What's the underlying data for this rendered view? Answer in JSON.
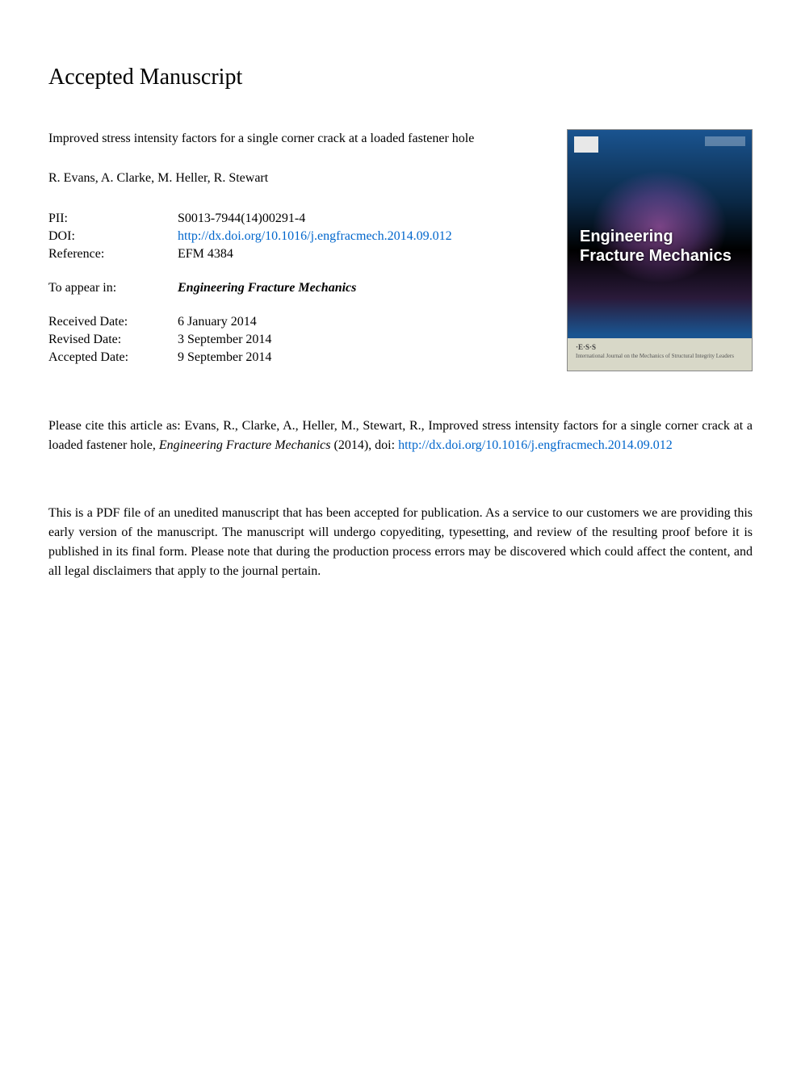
{
  "heading": "Accepted Manuscript",
  "title": "Improved stress intensity factors for a single corner crack at a loaded fastener hole",
  "authors": "R. Evans, A. Clarke, M. Heller, R. Stewart",
  "metadata": {
    "pii_label": "PII:",
    "pii_value": "S0013-7944(14)00291-4",
    "doi_label": "DOI:",
    "doi_value": "http://dx.doi.org/10.1016/j.engfracmech.2014.09.012",
    "reference_label": "Reference:",
    "reference_value": "EFM 4384",
    "appear_label": "To appear in:",
    "appear_value": "Engineering Fracture Mechanics",
    "received_label": "Received Date:",
    "received_value": "6 January 2014",
    "revised_label": "Revised Date:",
    "revised_value": "3 September 2014",
    "accepted_label": "Accepted Date:",
    "accepted_value": "9 September 2014"
  },
  "cover": {
    "journal_line1": "Engineering",
    "journal_line2": "Fracture Mechanics",
    "bottom_logo": "·E·S·S",
    "bottom_text": "International Journal on the Mechanics of Structural Integrity Leaders"
  },
  "citation": {
    "prefix": "Please cite this article as: Evans, R., Clarke, A., Heller, M., Stewart, R., Improved stress intensity factors for a single corner crack at a loaded fastener hole, ",
    "journal_italic": "Engineering Fracture Mechanics",
    "middle": " (2014), doi: ",
    "link": "http://dx.doi.org/10.1016/j.engfracmech.2014.09.012"
  },
  "disclaimer": "This is a PDF file of an unedited manuscript that has been accepted for publication. As a service to our customers we are providing this early version of the manuscript. The manuscript will undergo copyediting, typesetting, and review of the resulting proof before it is published in its final form. Please note that during the production process errors may be discovered which could affect the content, and all legal disclaimers that apply to the journal pertain.",
  "colors": {
    "text": "#000000",
    "link": "#0066cc",
    "background": "#ffffff",
    "cover_bg_top": "#1a5490",
    "cover_bg_dark": "#000000",
    "cover_bottom_bg": "#d8d8c8"
  },
  "fonts": {
    "body_family": "Georgia, Times New Roman, serif",
    "body_size": 16,
    "heading_size": 28,
    "cover_title_size": 20
  }
}
